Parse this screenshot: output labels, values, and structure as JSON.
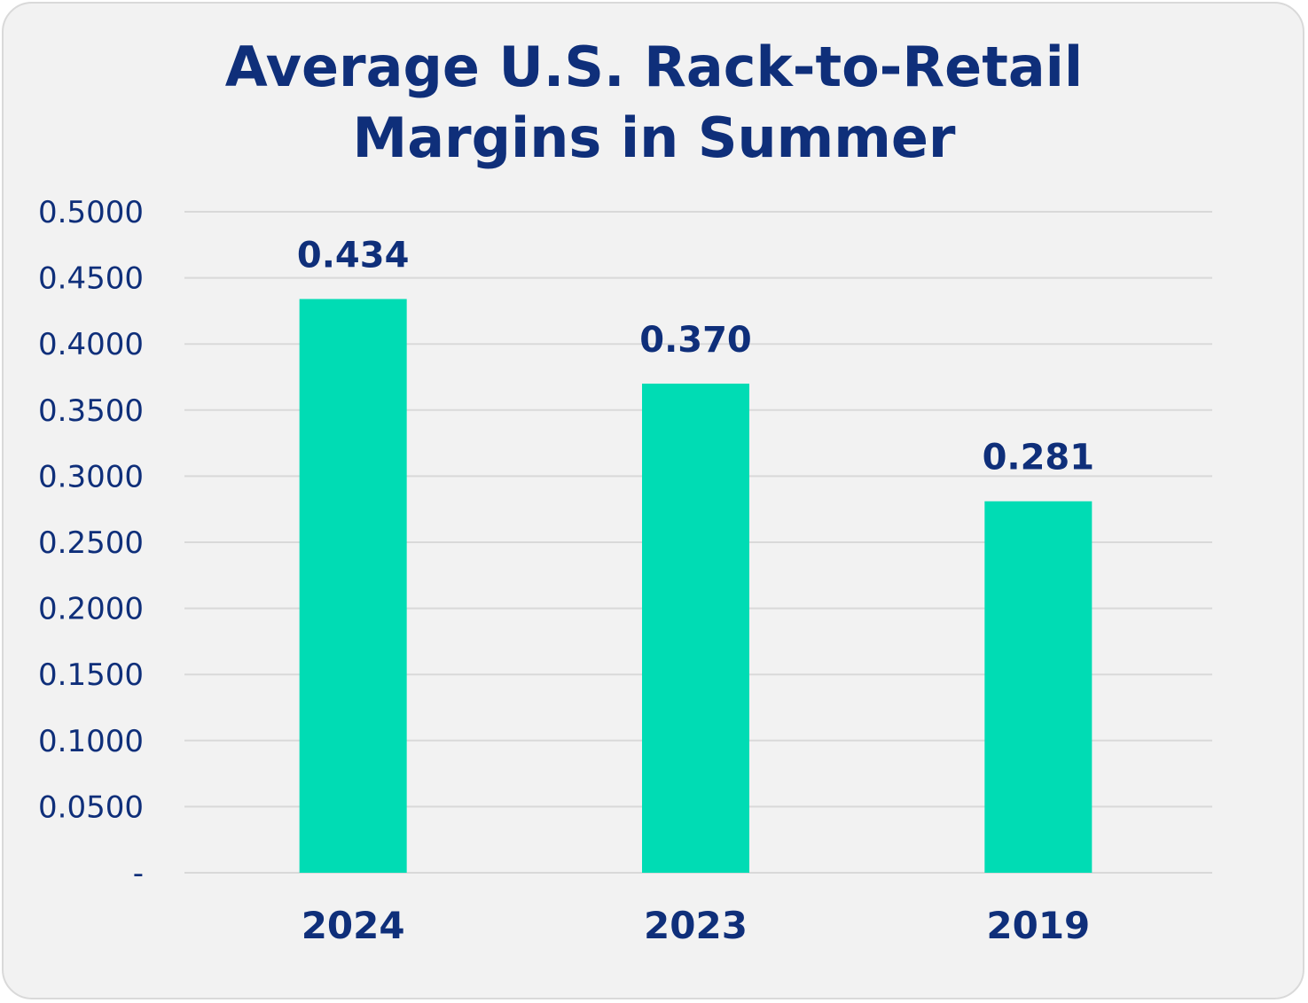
{
  "chart_data": {
    "type": "bar",
    "title_lines": [
      "Average U.S. Rack-to-Retail",
      "Margins in Summer"
    ],
    "categories": [
      "2024",
      "2023",
      "2019"
    ],
    "values": [
      0.434,
      0.37,
      0.281
    ],
    "data_labels": [
      "0.434",
      "0.370",
      "0.281"
    ],
    "ylim": [
      0,
      0.5
    ],
    "yticks": [
      0,
      0.05,
      0.1,
      0.15,
      0.2,
      0.25,
      0.3,
      0.35,
      0.4,
      0.45,
      0.5
    ],
    "ytick_labels": [
      "-",
      "0.0500",
      "0.1000",
      "0.1500",
      "0.2000",
      "0.2500",
      "0.3000",
      "0.3500",
      "0.4000",
      "0.4500",
      "0.5000"
    ],
    "xlabel": "",
    "ylabel": "",
    "grid": true,
    "legend": "none",
    "colors": {
      "bar": "#00dcb4",
      "text": "#0f2f7a",
      "grid": "#d9d9d9",
      "background": "#f2f2f2"
    }
  }
}
